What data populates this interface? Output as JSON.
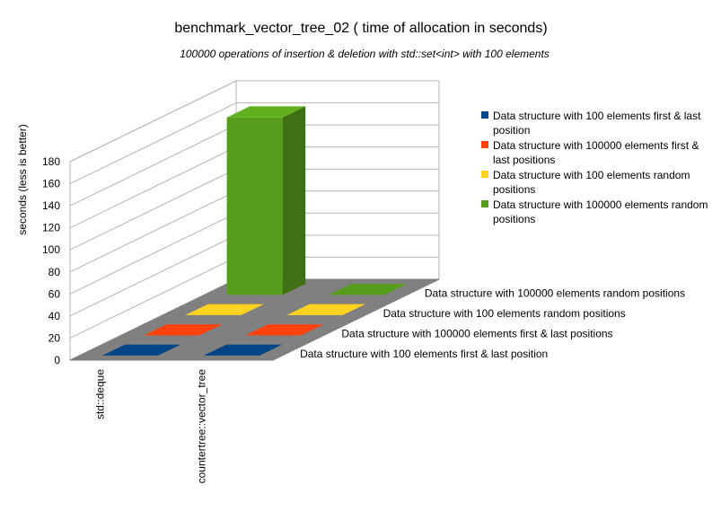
{
  "chart_data": {
    "type": "bar",
    "title": "benchmark_vector_tree_02 ( time of allocation in seconds)",
    "subtitle": "100000 operations of insertion & deletion with std::set<int> with 100 elements",
    "ylabel": "seconds (less is better)",
    "ylim": [
      0,
      180
    ],
    "yticks": [
      0,
      20,
      40,
      60,
      80,
      100,
      120,
      140,
      160,
      180
    ],
    "categories": [
      "std::deque",
      "countertree::vector_tree"
    ],
    "series": [
      {
        "name": "Data structure with 100 elements first & last position",
        "color": "#004586",
        "values": [
          0,
          0
        ]
      },
      {
        "name": "Data structure with 100000 elements first & last positions",
        "color": "#ff420e",
        "values": [
          0,
          0
        ]
      },
      {
        "name": "Data structure with 100 elements random positions",
        "color": "#ffd320",
        "values": [
          0,
          0
        ]
      },
      {
        "name": "Data structure with 100000 elements random positions",
        "color": "#579d1c",
        "values": [
          161,
          0
        ]
      }
    ],
    "grid": true,
    "legend_position": "right"
  }
}
